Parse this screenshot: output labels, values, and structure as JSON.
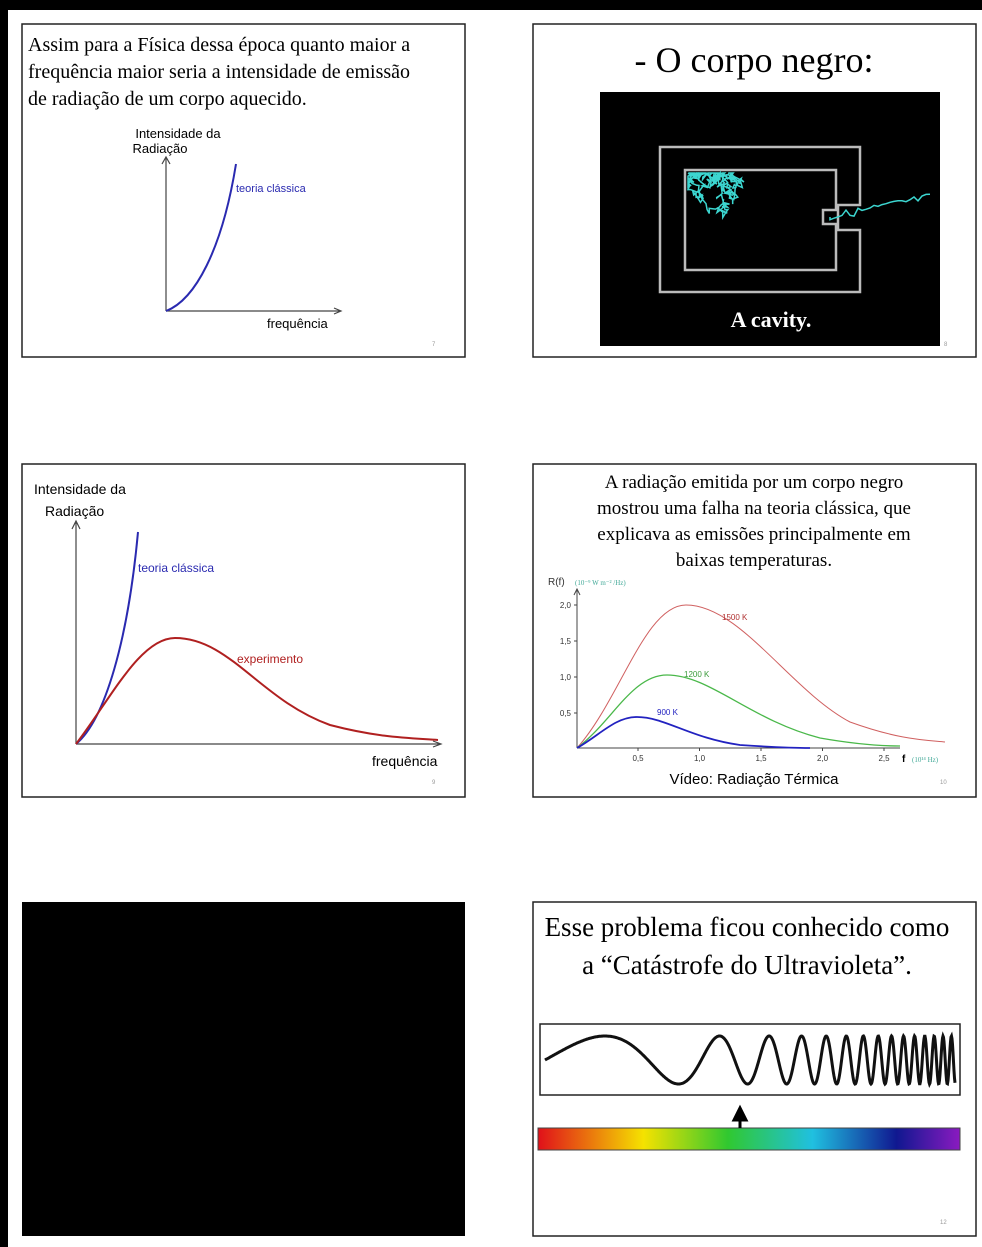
{
  "slides": [
    {
      "text_lines": [
        "Assim para a Física dessa época quanto maior a",
        "frequência maior seria a intensidade de emissão",
        "de radiação de um corpo aquecido."
      ],
      "y_label": [
        "Intensidade da",
        "Radiação"
      ],
      "curve_label": "teoria clássica",
      "x_label": "frequência",
      "number": "7"
    },
    {
      "title": "- O corpo negro:",
      "caption": "A cavity.",
      "number": "8"
    },
    {
      "y_label": [
        "Intensidade da",
        "Radiação"
      ],
      "curve_labels": [
        "teoria clássica",
        "experimento"
      ],
      "x_label": "frequência",
      "number": "9"
    },
    {
      "text_lines": [
        "A radiação emitida por um corpo negro",
        "mostrou uma falha na teoria clássica, que",
        "explicava as emissões principalmente em",
        "baixas temperaturas."
      ],
      "y_label": "R(f)",
      "y_units": "(10⁻⁹ W m⁻² /Hz)",
      "y_ticks": [
        "2,0",
        "1,5",
        "1,0",
        "0,5"
      ],
      "x_ticks": [
        "0,5",
        "1,0",
        "1,5",
        "2,0",
        "2,5"
      ],
      "x_label": "f",
      "x_units": "(10¹⁴ Hz)",
      "curve_labels": [
        "1500 K",
        "1200 K",
        "900 K"
      ],
      "video": "Vídeo: Radiação Térmica",
      "number": "10"
    },
    {},
    {
      "text_lines": [
        "Esse problema ficou conhecido como",
        "a “Catástrofe do Ultravioleta”."
      ],
      "number": "12"
    }
  ]
}
